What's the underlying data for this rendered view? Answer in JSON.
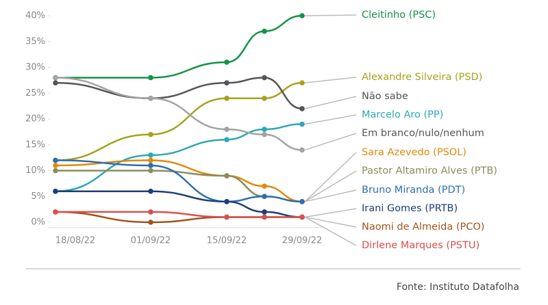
{
  "chart_data": {
    "type": "line",
    "categories": [
      "18/08/22",
      "01/09/22",
      "15/09/22",
      null,
      "29/09/22"
    ],
    "ylim": [
      0,
      40
    ],
    "yticks": [
      {
        "value": 0,
        "label": "0%"
      },
      {
        "value": 5,
        "label": "5%"
      },
      {
        "value": 10,
        "label": "10%"
      },
      {
        "value": 15,
        "label": "15%"
      },
      {
        "value": 20,
        "label": "20%"
      },
      {
        "value": 25,
        "label": "25%"
      },
      {
        "value": 30,
        "label": "30%"
      },
      {
        "value": 35,
        "label": "35%"
      },
      {
        "value": 40,
        "label": "40%"
      }
    ],
    "grid": false,
    "series": [
      {
        "name": "Cleitinho (PSC)",
        "color": "#139346",
        "values": [
          28,
          28,
          31,
          37,
          40
        ]
      },
      {
        "name": "Alexandre Silveira (PSD)",
        "color": "#a9a11a",
        "values": [
          12,
          17,
          24,
          24,
          27
        ]
      },
      {
        "name": "Não sabe",
        "color": "#555555",
        "values": [
          27,
          24,
          27,
          28,
          22
        ]
      },
      {
        "name": "Marcelo Aro (PP)",
        "color": "#2aa9b3",
        "values": [
          6,
          13,
          16,
          18,
          19
        ]
      },
      {
        "name": "Em branco/nulo/nenhum",
        "color": "#a3a3a3",
        "values": [
          28,
          24,
          18,
          17,
          14
        ]
      },
      {
        "name": "Sara Azevedo (PSOL)",
        "color": "#e0890c",
        "values": [
          11,
          12,
          9,
          7,
          4
        ]
      },
      {
        "name": "Pastor Altamiro Alves (PTB)",
        "color": "#8b8b5c",
        "values": [
          10,
          10,
          9,
          5,
          4
        ]
      },
      {
        "name": "Bruno Miranda (PDT)",
        "color": "#2e6ead",
        "values": [
          12,
          11,
          4,
          5,
          4
        ]
      },
      {
        "name": "Irani Gomes (PRTB)",
        "color": "#1e3d78",
        "values": [
          6,
          6,
          4,
          2,
          1
        ]
      },
      {
        "name": "Naomi de Almeida (PCO)",
        "color": "#a3531c",
        "values": [
          2,
          0,
          1,
          1,
          1
        ]
      },
      {
        "name": "Dirlene Marques (PSTU)",
        "color": "#d9504e",
        "values": [
          2,
          2,
          1,
          1,
          1
        ]
      }
    ],
    "source": "Fonte: Instituto Datafolha"
  }
}
